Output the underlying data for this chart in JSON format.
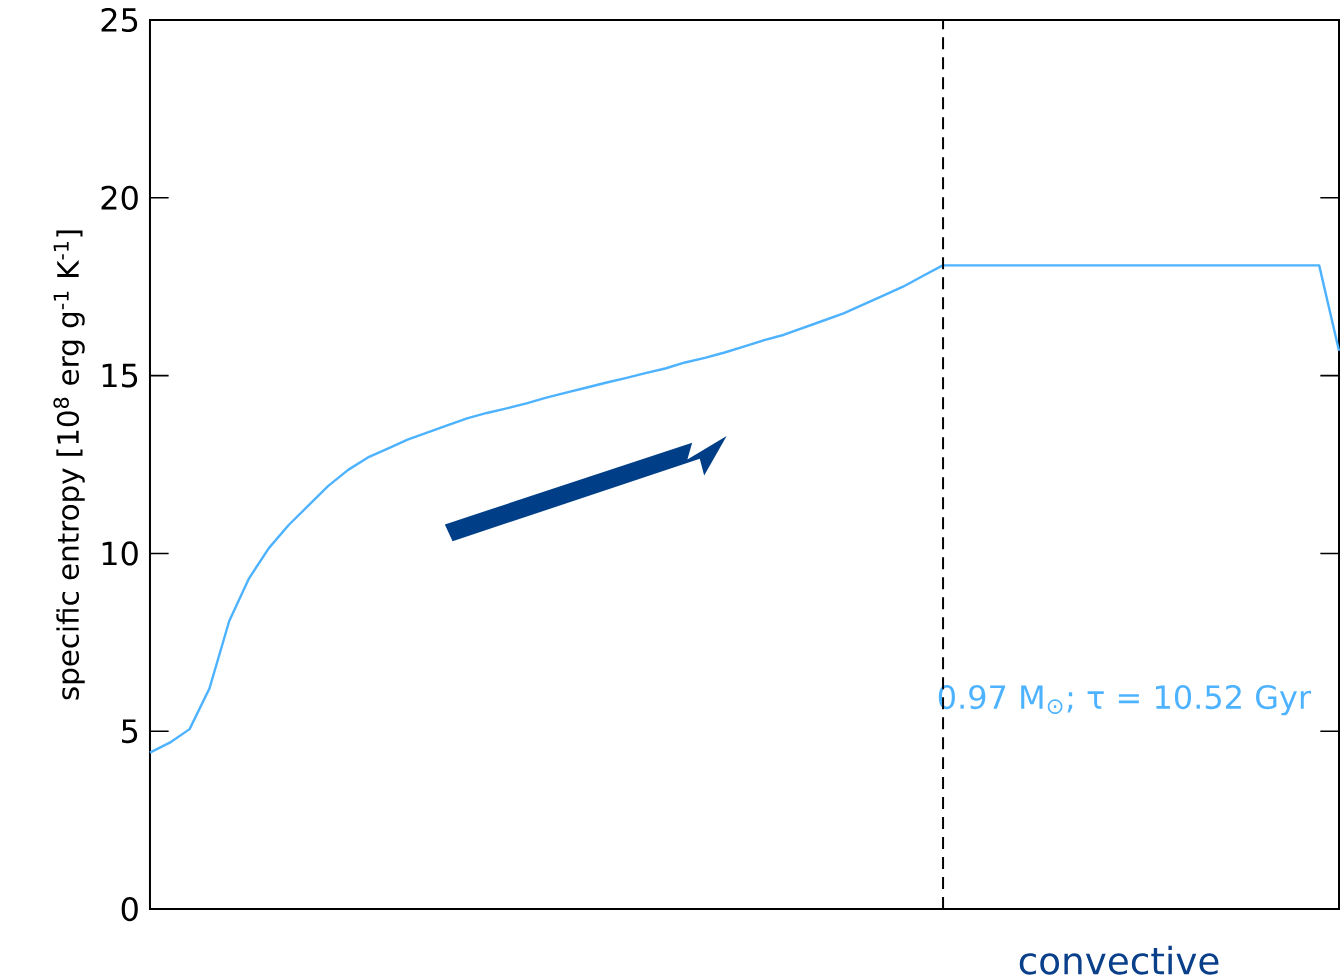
{
  "chart_data": {
    "type": "line",
    "ylabel": "specific entropy [10$^{8}$ erg g$^{-1}$ K$^{-1}$]",
    "categories": [
      null,
      null,
      null,
      null,
      null,
      null,
      null,
      null,
      null,
      null,
      null,
      null,
      null,
      null,
      null,
      null,
      null,
      null,
      null,
      null,
      null,
      null,
      null,
      null,
      null,
      null,
      null,
      null,
      null,
      null,
      null,
      null,
      null,
      null,
      null,
      null,
      null,
      null,
      null,
      null,
      null,
      null,
      null,
      null,
      null,
      null,
      null,
      null,
      null,
      null,
      null,
      null,
      null,
      null,
      null,
      null,
      null,
      null,
      null,
      null,
      null
    ],
    "ylim": [
      0,
      25
    ],
    "yticks": [
      0,
      5,
      10,
      15,
      20,
      25
    ],
    "tick_labels": "y",
    "series": [
      {
        "name": "0.97 M$_{⊙}$; τ = 10.52 Gyr",
        "color": "#4db2ff",
        "values": [
          4.4,
          4.68,
          5.06,
          6.2,
          8.1,
          9.3,
          10.15,
          10.8,
          11.35,
          11.9,
          12.35,
          12.7,
          12.95,
          13.2,
          13.4,
          13.6,
          13.8,
          13.95,
          14.08,
          14.22,
          14.38,
          14.52,
          14.66,
          14.8,
          14.93,
          15.07,
          15.2,
          15.37,
          15.5,
          15.65,
          15.82,
          16.0,
          16.15,
          16.35,
          16.55,
          16.75,
          17.0,
          17.25,
          17.5,
          17.8,
          18.1,
          18.1,
          18.1,
          18.1,
          18.1,
          18.1,
          18.1,
          18.1,
          18.1,
          18.1,
          18.1,
          18.1,
          18.1,
          18.1,
          18.1,
          18.1,
          18.1,
          18.1,
          18.1,
          18.1,
          15.7
        ]
      }
    ],
    "annotations": [
      "convective"
    ],
    "grid": false,
    "marker": "none",
    "line_style": "solid"
  }
}
